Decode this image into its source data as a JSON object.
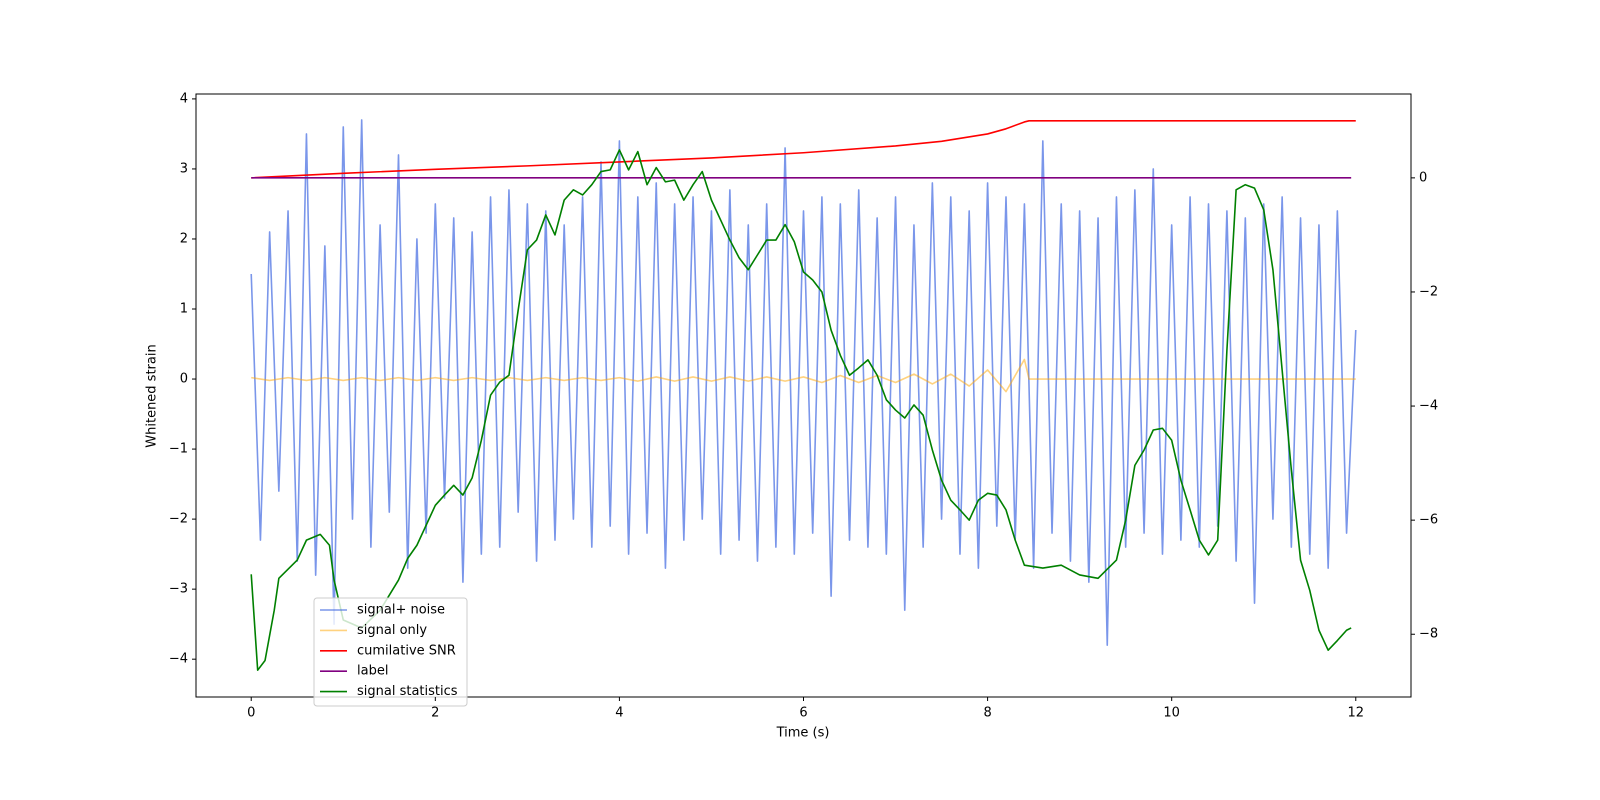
{
  "chart_data": {
    "type": "line",
    "xlabel": "Time (s)",
    "ylabel": "Whitened strain",
    "xlim": [
      -0.6,
      12.6
    ],
    "ylim": [
      -4.54,
      4.07
    ],
    "y2lim": [
      -9.1,
      1.47
    ],
    "xticks": [
      0,
      2,
      4,
      6,
      8,
      10,
      12
    ],
    "yticks": [
      {
        "value": -4,
        "label": "−4"
      },
      {
        "value": -3,
        "label": "−3"
      },
      {
        "value": -2,
        "label": "−2"
      },
      {
        "value": -1,
        "label": "−1"
      },
      0,
      1,
      2,
      3,
      4
    ],
    "y2ticks": [
      {
        "value": -8,
        "label": "−8"
      },
      {
        "value": -6,
        "label": "−6"
      },
      {
        "value": -4,
        "label": "−4"
      },
      {
        "value": -2,
        "label": "−2"
      },
      0
    ],
    "grid": false,
    "series": [
      {
        "name": "signal+ noise",
        "color": "#4169e1",
        "alpha": 0.7,
        "x": [
          0,
          0.1,
          0.2,
          0.3,
          0.4,
          0.5,
          0.6,
          0.7,
          0.8,
          0.9,
          1,
          1.1,
          1.2,
          1.3,
          1.4,
          1.5,
          1.6,
          1.7,
          1.8,
          1.9,
          2,
          2.1,
          2.2,
          2.3,
          2.4,
          2.5,
          2.6,
          2.7,
          2.8,
          2.9,
          3,
          3.1,
          3.2,
          3.3,
          3.4,
          3.5,
          3.6,
          3.7,
          3.8,
          3.9,
          4,
          4.1,
          4.2,
          4.3,
          4.4,
          4.5,
          4.6,
          4.7,
          4.8,
          4.9,
          5,
          5.1,
          5.2,
          5.3,
          5.4,
          5.5,
          5.6,
          5.7,
          5.8,
          5.9,
          6,
          6.1,
          6.2,
          6.3,
          6.4,
          6.5,
          6.6,
          6.7,
          6.8,
          6.9,
          7,
          7.1,
          7.2,
          7.3,
          7.4,
          7.5,
          7.6,
          7.7,
          7.8,
          7.9,
          8,
          8.1,
          8.2,
          8.3,
          8.4,
          8.5,
          8.6,
          8.7,
          8.8,
          8.9,
          9,
          9.1,
          9.2,
          9.3,
          9.4,
          9.5,
          9.6,
          9.7,
          9.8,
          9.9,
          10,
          10.1,
          10.2,
          10.3,
          10.4,
          10.5,
          10.6,
          10.7,
          10.8,
          10.9,
          11,
          11.1,
          11.2,
          11.3,
          11.4,
          11.5,
          11.6,
          11.7,
          11.8,
          11.9,
          12
        ],
        "values": [
          1.5,
          -2.3,
          2.1,
          -1.6,
          2.4,
          -2.6,
          3.5,
          -2.8,
          1.9,
          -3.5,
          3.6,
          -2.0,
          3.7,
          -2.4,
          2.2,
          -1.9,
          3.2,
          -2.7,
          2.0,
          -2.2,
          2.5,
          -1.7,
          2.3,
          -2.9,
          2.1,
          -2.5,
          2.6,
          -2.4,
          2.7,
          -1.9,
          2.5,
          -2.6,
          2.4,
          -2.3,
          2.2,
          -2.0,
          2.6,
          -2.4,
          3.1,
          -2.1,
          3.4,
          -2.5,
          2.6,
          -2.2,
          2.8,
          -2.7,
          2.5,
          -2.3,
          2.6,
          -2.0,
          2.4,
          -2.5,
          2.7,
          -2.3,
          2.2,
          -2.6,
          2.5,
          -2.4,
          3.3,
          -2.5,
          2.4,
          -2.2,
          2.6,
          -3.1,
          2.5,
          -2.3,
          2.7,
          -2.4,
          2.3,
          -2.5,
          2.6,
          -3.3,
          2.2,
          -2.4,
          2.8,
          -2.0,
          2.6,
          -2.5,
          2.4,
          -2.7,
          2.8,
          -2.1,
          2.6,
          -2.3,
          2.5,
          -2.7,
          3.4,
          -2.2,
          2.5,
          -2.6,
          2.4,
          -2.9,
          2.3,
          -3.8,
          2.6,
          -2.4,
          2.7,
          -2.2,
          3.0,
          -2.5,
          2.2,
          -2.3,
          2.6,
          -2.4,
          2.5,
          -2.1,
          2.4,
          -2.6,
          2.3,
          -3.2,
          2.5,
          -2.0,
          2.6,
          -2.4,
          2.3,
          -2.5,
          2.2,
          -2.7,
          2.4,
          -2.2,
          0.7
        ]
      },
      {
        "name": "signal only",
        "color": "#ffa500",
        "alpha": 0.5,
        "x": [
          0,
          0.2,
          0.4,
          0.6,
          0.8,
          1,
          1.2,
          1.4,
          1.6,
          1.8,
          2,
          2.2,
          2.4,
          2.6,
          2.8,
          3,
          3.2,
          3.4,
          3.6,
          3.8,
          4,
          4.2,
          4.4,
          4.6,
          4.8,
          5,
          5.2,
          5.4,
          5.6,
          5.8,
          6,
          6.2,
          6.4,
          6.6,
          6.8,
          7,
          7.2,
          7.4,
          7.6,
          7.8,
          8,
          8.2,
          8.4,
          8.45,
          12
        ],
        "values": [
          0.02,
          -0.02,
          0.02,
          -0.02,
          0.02,
          -0.02,
          0.02,
          -0.02,
          0.02,
          -0.02,
          0.02,
          -0.02,
          0.02,
          -0.02,
          0.02,
          -0.02,
          0.02,
          -0.02,
          0.02,
          -0.02,
          0.02,
          -0.03,
          0.03,
          -0.03,
          0.03,
          -0.03,
          0.03,
          -0.03,
          0.03,
          -0.03,
          0.03,
          -0.05,
          0.05,
          -0.05,
          0.05,
          -0.05,
          0.07,
          -0.07,
          0.07,
          -0.1,
          0.13,
          -0.18,
          0.28,
          0,
          0
        ]
      },
      {
        "name": "cumilative SNR",
        "color": "#ff0000",
        "alpha": 1,
        "axis": "y2",
        "x": [
          0,
          1,
          2,
          3,
          4,
          5,
          6,
          7,
          7.5,
          8,
          8.2,
          8.4,
          8.45,
          12
        ],
        "values": [
          0,
          0.08,
          0.15,
          0.21,
          0.28,
          0.35,
          0.44,
          0.56,
          0.64,
          0.77,
          0.86,
          0.98,
          1.0,
          1.0
        ]
      },
      {
        "name": "label",
        "color": "#800080",
        "alpha": 1,
        "axis": "y2",
        "x": [
          0,
          11.95
        ],
        "values": [
          0,
          0
        ]
      },
      {
        "name": "signal statistics",
        "color": "#008000",
        "alpha": 1,
        "axis": "y2",
        "x": [
          0,
          0.07,
          0.15,
          0.25,
          0.3,
          0.5,
          0.6,
          0.75,
          0.85,
          0.9,
          1,
          1.2,
          1.4,
          1.6,
          1.7,
          1.8,
          2,
          2.1,
          2.2,
          2.3,
          2.4,
          2.5,
          2.6,
          2.7,
          2.8,
          2.9,
          3,
          3.1,
          3.2,
          3.3,
          3.4,
          3.5,
          3.6,
          3.7,
          3.8,
          3.9,
          4,
          4.1,
          4.2,
          4.3,
          4.4,
          4.5,
          4.6,
          4.7,
          4.8,
          4.9,
          5,
          5.1,
          5.2,
          5.3,
          5.4,
          5.5,
          5.6,
          5.7,
          5.8,
          5.9,
          6,
          6.1,
          6.2,
          6.3,
          6.4,
          6.5,
          6.6,
          6.7,
          6.8,
          6.9,
          7,
          7.1,
          7.2,
          7.3,
          7.4,
          7.5,
          7.6,
          7.7,
          7.8,
          7.9,
          8,
          8.1,
          8.2,
          8.3,
          8.4,
          8.6,
          8.8,
          9,
          9.2,
          9.4,
          9.5,
          9.6,
          9.7,
          9.8,
          9.9,
          10,
          10.1,
          10.2,
          10.3,
          10.4,
          10.5,
          10.6,
          10.7,
          10.8,
          10.9,
          11,
          11.1,
          11.2,
          11.3,
          11.4,
          11.5,
          11.6,
          11.7,
          11.8,
          11.9,
          11.95
        ],
        "values": [
          -6.95,
          -8.63,
          -8.46,
          -7.58,
          -7.02,
          -6.7,
          -6.35,
          -6.25,
          -6.44,
          -7.05,
          -7.75,
          -7.89,
          -7.58,
          -7.05,
          -6.67,
          -6.44,
          -5.74,
          -5.56,
          -5.39,
          -5.56,
          -5.26,
          -4.6,
          -3.81,
          -3.58,
          -3.46,
          -2.32,
          -1.26,
          -1.09,
          -0.65,
          -1.0,
          -0.39,
          -0.21,
          -0.3,
          -0.12,
          0.11,
          0.14,
          0.49,
          0.14,
          0.46,
          -0.12,
          0.18,
          -0.07,
          -0.04,
          -0.39,
          -0.12,
          0.11,
          -0.39,
          -0.74,
          -1.09,
          -1.4,
          -1.61,
          -1.35,
          -1.09,
          -1.09,
          -0.82,
          -1.12,
          -1.65,
          -1.79,
          -2.0,
          -2.67,
          -3.11,
          -3.46,
          -3.33,
          -3.19,
          -3.46,
          -3.89,
          -4.07,
          -4.21,
          -3.98,
          -4.16,
          -4.77,
          -5.3,
          -5.65,
          -5.82,
          -6.0,
          -5.65,
          -5.53,
          -5.56,
          -5.82,
          -6.35,
          -6.79,
          -6.84,
          -6.79,
          -6.96,
          -7.02,
          -6.7,
          -6.0,
          -5.04,
          -4.77,
          -4.42,
          -4.39,
          -4.6,
          -5.3,
          -5.82,
          -6.35,
          -6.61,
          -6.35,
          -3.02,
          -0.21,
          -0.12,
          -0.18,
          -0.56,
          -1.61,
          -3.37,
          -5.12,
          -6.7,
          -7.23,
          -7.93,
          -8.28,
          -8.11,
          -7.93,
          -7.89
        ]
      }
    ]
  }
}
